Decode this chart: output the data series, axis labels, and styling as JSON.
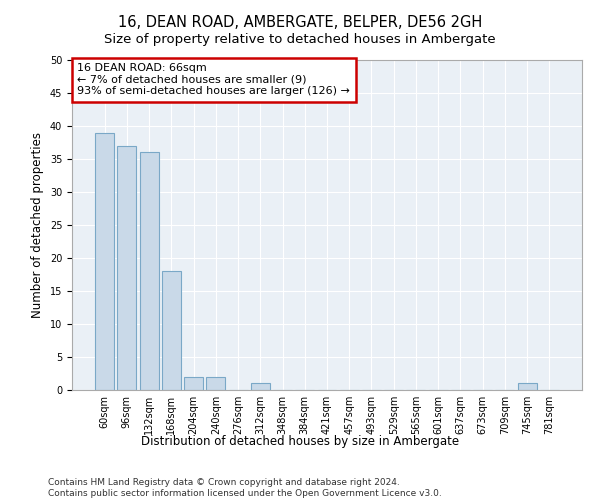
{
  "title": "16, DEAN ROAD, AMBERGATE, BELPER, DE56 2GH",
  "subtitle": "Size of property relative to detached houses in Ambergate",
  "xlabel": "Distribution of detached houses by size in Ambergate",
  "ylabel": "Number of detached properties",
  "categories": [
    "60sqm",
    "96sqm",
    "132sqm",
    "168sqm",
    "204sqm",
    "240sqm",
    "276sqm",
    "312sqm",
    "348sqm",
    "384sqm",
    "421sqm",
    "457sqm",
    "493sqm",
    "529sqm",
    "565sqm",
    "601sqm",
    "637sqm",
    "673sqm",
    "709sqm",
    "745sqm",
    "781sqm"
  ],
  "values": [
    39,
    37,
    36,
    18,
    2,
    2,
    0,
    1,
    0,
    0,
    0,
    0,
    0,
    0,
    0,
    0,
    0,
    0,
    0,
    1,
    0
  ],
  "bar_color": "#c9d9e8",
  "bar_edge_color": "#7aa8c7",
  "annotation_text": "16 DEAN ROAD: 66sqm\n← 7% of detached houses are smaller (9)\n93% of semi-detached houses are larger (126) →",
  "annotation_box_color": "#ffffff",
  "annotation_box_edge_color": "#cc0000",
  "ylim": [
    0,
    50
  ],
  "yticks": [
    0,
    5,
    10,
    15,
    20,
    25,
    30,
    35,
    40,
    45,
    50
  ],
  "background_color": "#eaf0f6",
  "footer_line1": "Contains HM Land Registry data © Crown copyright and database right 2024.",
  "footer_line2": "Contains public sector information licensed under the Open Government Licence v3.0.",
  "title_fontsize": 10.5,
  "subtitle_fontsize": 9.5,
  "xlabel_fontsize": 8.5,
  "ylabel_fontsize": 8.5,
  "tick_fontsize": 7,
  "annotation_fontsize": 8,
  "footer_fontsize": 6.5
}
